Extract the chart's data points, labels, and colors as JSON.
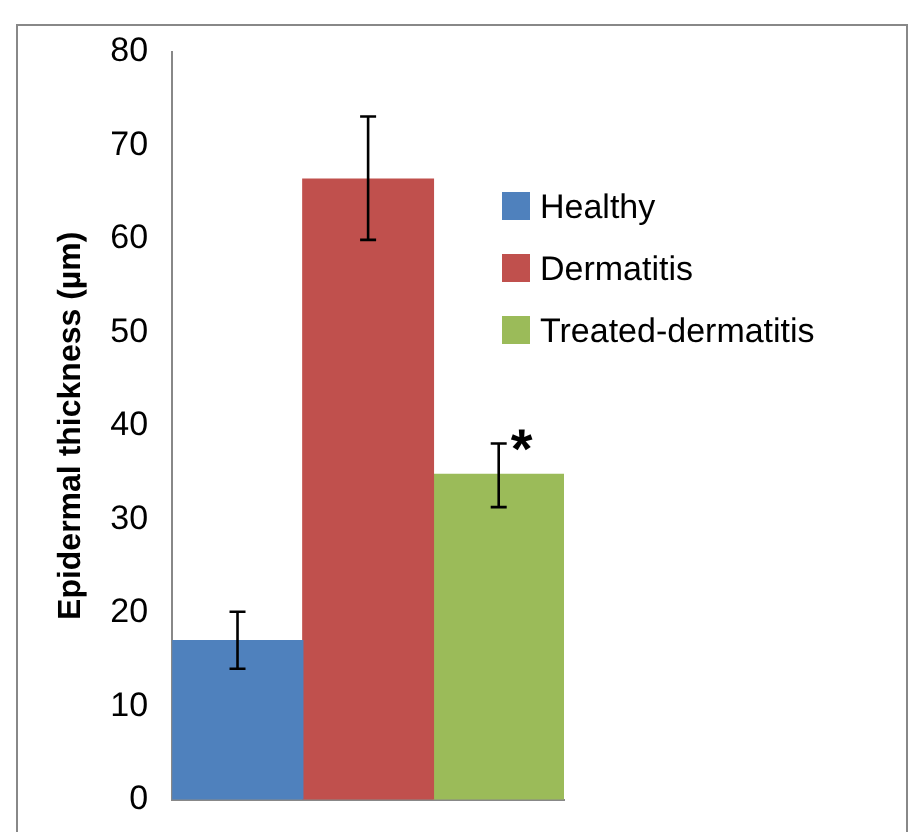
{
  "chart_data": {
    "type": "bar",
    "ylabel": "Epidermal thickness (µm)",
    "categories": [
      null
    ],
    "series": [
      {
        "name": "Healthy",
        "color": "#4f81bd",
        "values": [
          17.0
        ],
        "errors": [
          [
            14.0,
            20.1
          ]
        ]
      },
      {
        "name": "Dermatitis",
        "color": "#c0504d",
        "values": [
          66.4
        ],
        "errors": [
          [
            59.9,
            73.1
          ]
        ]
      },
      {
        "name": "Treated-dermatitis",
        "color": "#9bbb59",
        "values": [
          34.8
        ],
        "errors": [
          [
            31.3,
            38.1
          ]
        ]
      }
    ],
    "ylim": [
      0,
      80
    ],
    "yticks": [
      0,
      10,
      20,
      30,
      40,
      50,
      60,
      70,
      80
    ],
    "grid": false,
    "legend": "right",
    "tick_labels": "y",
    "annotations": [
      "*"
    ]
  }
}
